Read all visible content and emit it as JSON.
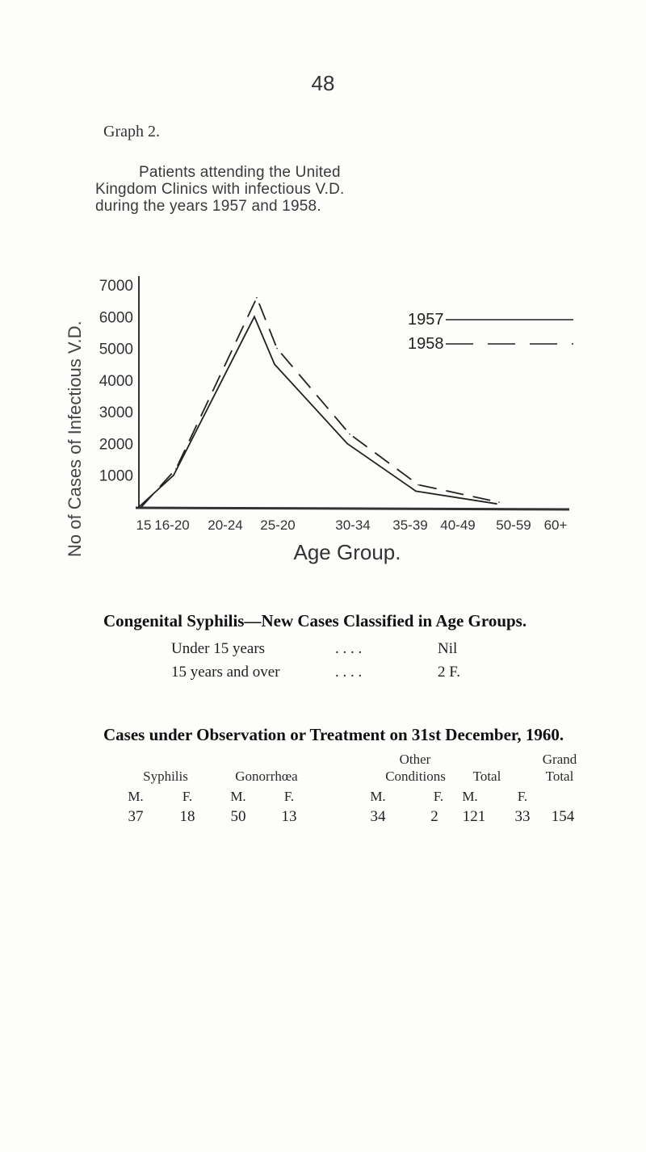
{
  "page_number": "48",
  "graph_label": "Graph 2.",
  "caption": {
    "line1": "Patients attending the United",
    "line2": "Kingdom Clinics with infectious V.D.",
    "line3": "during the years 1957 and 1958."
  },
  "chart_data": {
    "type": "line",
    "ylabel": "No of Cases of Infectious V.D.",
    "xlabel": "Age Group.",
    "y_ticks": [
      "7000",
      "6000",
      "5000",
      "4000",
      "3000",
      "2000",
      "1000"
    ],
    "x_ticks": [
      "15",
      "16-20",
      "20-24",
      "25-20",
      "30-34",
      "35-39",
      "40-49",
      "50-59",
      "60+"
    ],
    "ylim": [
      0,
      7000
    ],
    "legend_position": "top-right",
    "series": [
      {
        "name": "1957",
        "style": "solid",
        "values": [
          0,
          1000,
          6000,
          4500,
          2000,
          500,
          100
        ]
      },
      {
        "name": "1958",
        "style": "dashed",
        "values": [
          0,
          1200,
          6600,
          5000,
          2300,
          700,
          150
        ]
      }
    ],
    "x_positions": [
      "15",
      "16-20",
      "20-24",
      "25-20",
      "30-34",
      "35-39",
      "40-49"
    ]
  },
  "congenital": {
    "title": "Congenital Syphilis—New Cases Classified in Age Groups.",
    "rows": [
      {
        "label": "Under 15 years",
        "dots": ". .     . .",
        "value": "Nil"
      },
      {
        "label": "15 years and over",
        "dots": ". .     . .",
        "value": "2 F."
      }
    ]
  },
  "observation": {
    "title": "Cases under Observation or Treatment on 31st December, 1960.",
    "headers": {
      "syphilis": "Syphilis",
      "gonorrhoea": "Gonorrhœa",
      "other_top": "Other",
      "other_bottom": "Conditions",
      "total": "Total",
      "grand_top": "Grand",
      "grand_bottom": "Total"
    },
    "subheaders": [
      "M.",
      "F.",
      "M.",
      "F.",
      "M.",
      "F.",
      "M.",
      "F."
    ],
    "values": [
      "37",
      "18",
      "50",
      "13",
      "34",
      "2",
      "121",
      "33",
      "154"
    ]
  }
}
